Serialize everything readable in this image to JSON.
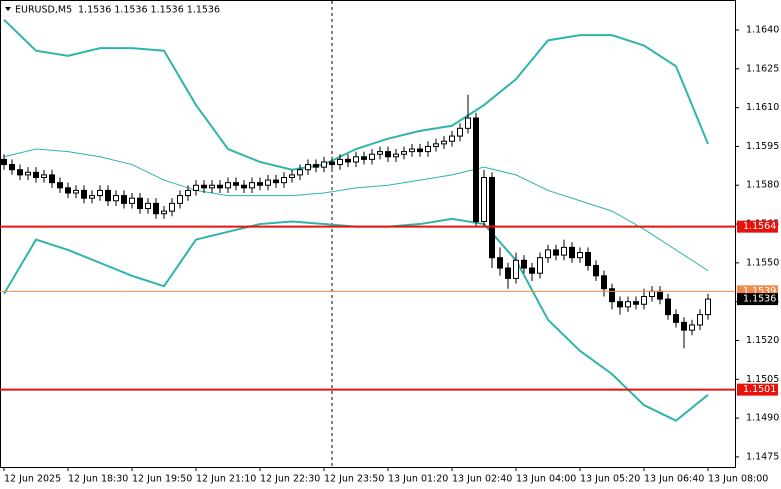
{
  "chart_data": {
    "type": "candlestick",
    "title": "EURUSD,M5",
    "subtitle": "1.1536 1.1536 1.1536 1.1536",
    "ylim": [
      1.14711,
      1.16516
    ],
    "xlim": [
      -0.5,
      91.375
    ],
    "yticks": [
      1.1475,
      {
        "value": 1.149,
        "label": "1.1490"
      },
      1.1505,
      {
        "value": 1.152,
        "label": "1.1520"
      },
      1.1535,
      {
        "value": 1.155,
        "label": "1.1550"
      },
      1.1565,
      {
        "value": 1.158,
        "label": "1.1580"
      },
      1.1595,
      {
        "value": 1.161,
        "label": "1.1610"
      },
      1.1625,
      {
        "value": 1.164,
        "label": "1.1640"
      }
    ],
    "xticks": [
      {
        "value": 0,
        "label": "12 Jun 2025"
      },
      {
        "value": 8,
        "label": "12 Jun 18:30"
      },
      {
        "value": 16,
        "label": "12 Jun 19:50"
      },
      {
        "value": 24,
        "label": "12 Jun 21:10"
      },
      {
        "value": 32,
        "label": "12 Jun 22:30"
      },
      {
        "value": 40,
        "label": "12 Jun 23:50"
      },
      {
        "value": 48,
        "label": "13 Jun 01:20"
      },
      {
        "value": 56,
        "label": "13 Jun 02:40"
      },
      {
        "value": 64,
        "label": "13 Jun 04:00"
      },
      {
        "value": 72,
        "label": "13 Jun 05:20"
      },
      {
        "value": 80,
        "label": "13 Jun 06:40"
      },
      {
        "value": 88,
        "label": "13 Jun 08:00"
      }
    ],
    "open": [
      1.159,
      1.1588,
      1.1586,
      1.1584,
      1.1585,
      1.1583,
      1.1584,
      1.1581,
      1.1579,
      1.1577,
      1.1578,
      1.1575,
      1.1576,
      1.1578,
      1.1574,
      1.1576,
      1.1573,
      1.1575,
      1.1571,
      1.1573,
      1.1569,
      1.157,
      1.1573,
      1.1576,
      1.1578,
      1.158,
      1.1579,
      1.158,
      1.1579,
      1.1581,
      1.158,
      1.1579,
      1.1581,
      1.158,
      1.1582,
      1.1581,
      1.1583,
      1.1584,
      1.1586,
      1.1588,
      1.1587,
      1.1589,
      1.1588,
      1.159,
      1.1589,
      1.1591,
      1.159,
      1.1592,
      1.1593,
      1.1591,
      1.1592,
      1.1593,
      1.1594,
      1.1593,
      1.1595,
      1.1596,
      1.1597,
      1.1599,
      1.1602,
      1.1606,
      1.1566,
      1.1583,
      1.1552,
      1.1548,
      1.1544,
      1.1551,
      1.1548,
      1.1546,
      1.1552,
      1.1555,
      1.1553,
      1.1556,
      1.1552,
      1.1554,
      1.1549,
      1.1545,
      1.154,
      1.1535,
      1.1533,
      1.1535,
      1.1534,
      1.1537,
      1.1539,
      1.1536,
      1.153,
      1.1527,
      1.1524,
      1.1526,
      1.153
    ],
    "high": [
      1.1592,
      1.159,
      1.1588,
      1.1587,
      1.1587,
      1.1586,
      1.1586,
      1.1583,
      1.1581,
      1.158,
      1.158,
      1.1578,
      1.158,
      1.158,
      1.1578,
      1.1578,
      1.1577,
      1.1577,
      1.1575,
      1.1575,
      1.1572,
      1.1575,
      1.1578,
      1.158,
      1.1582,
      1.1582,
      1.1582,
      1.1582,
      1.1583,
      1.1583,
      1.1582,
      1.1583,
      1.1583,
      1.1584,
      1.1584,
      1.1585,
      1.1586,
      1.1588,
      1.159,
      1.159,
      1.1591,
      1.1591,
      1.1592,
      1.1592,
      1.1593,
      1.1593,
      1.1594,
      1.1595,
      1.1595,
      1.1594,
      1.1595,
      1.1596,
      1.1596,
      1.1597,
      1.1598,
      1.1599,
      1.1601,
      1.1604,
      1.1615,
      1.1608,
      1.1586,
      1.1585,
      1.1556,
      1.155,
      1.1554,
      1.1553,
      1.155,
      1.1554,
      1.1557,
      1.1557,
      1.1559,
      1.1558,
      1.1556,
      1.1556,
      1.1551,
      1.1547,
      1.1542,
      1.1537,
      1.1537,
      1.1537,
      1.154,
      1.1541,
      1.1541,
      1.1538,
      1.1532,
      1.1529,
      1.1528,
      1.1532,
      1.1538
    ],
    "low": [
      1.1586,
      1.1584,
      1.1582,
      1.1582,
      1.1581,
      1.1581,
      1.1579,
      1.1577,
      1.1575,
      1.1575,
      1.1573,
      1.1573,
      1.1574,
      1.1572,
      1.1572,
      1.1571,
      1.1571,
      1.1569,
      1.1569,
      1.1567,
      1.1567,
      1.1568,
      1.1571,
      1.1574,
      1.1576,
      1.1577,
      1.1577,
      1.1577,
      1.1577,
      1.1578,
      1.1577,
      1.1577,
      1.1578,
      1.1578,
      1.1579,
      1.1579,
      1.1581,
      1.1582,
      1.1584,
      1.1585,
      1.1585,
      1.1586,
      1.1586,
      1.1587,
      1.1587,
      1.1588,
      1.1588,
      1.159,
      1.1589,
      1.1589,
      1.159,
      1.1591,
      1.1591,
      1.1591,
      1.1593,
      1.1594,
      1.1595,
      1.1597,
      1.16,
      1.1564,
      1.1564,
      1.1548,
      1.1545,
      1.154,
      1.1542,
      1.1546,
      1.1543,
      1.1544,
      1.155,
      1.1551,
      1.1551,
      1.155,
      1.155,
      1.1547,
      1.1543,
      1.1537,
      1.1532,
      1.153,
      1.1531,
      1.1532,
      1.1532,
      1.1535,
      1.1534,
      1.1528,
      1.1525,
      1.1517,
      1.1522,
      1.1524,
      1.1528
    ],
    "close": [
      1.1588,
      1.1586,
      1.1584,
      1.1585,
      1.1583,
      1.1584,
      1.1581,
      1.1579,
      1.1577,
      1.1578,
      1.1575,
      1.1576,
      1.1578,
      1.1574,
      1.1576,
      1.1573,
      1.1575,
      1.1571,
      1.1573,
      1.1569,
      1.157,
      1.1573,
      1.1576,
      1.1578,
      1.158,
      1.1579,
      1.158,
      1.1579,
      1.1581,
      1.158,
      1.1579,
      1.1581,
      1.158,
      1.1582,
      1.1581,
      1.1583,
      1.1584,
      1.1586,
      1.1588,
      1.1587,
      1.1589,
      1.1588,
      1.159,
      1.1589,
      1.1591,
      1.159,
      1.1592,
      1.1593,
      1.1591,
      1.1592,
      1.1593,
      1.1594,
      1.1593,
      1.1595,
      1.1596,
      1.1597,
      1.1599,
      1.1602,
      1.1606,
      1.1566,
      1.1583,
      1.1552,
      1.1548,
      1.1544,
      1.1551,
      1.1548,
      1.1546,
      1.1552,
      1.1555,
      1.1553,
      1.1556,
      1.1552,
      1.1554,
      1.1549,
      1.1545,
      1.154,
      1.1535,
      1.1533,
      1.1535,
      1.1534,
      1.1537,
      1.1539,
      1.1536,
      1.153,
      1.1527,
      1.1524,
      1.1526,
      1.153,
      1.1536
    ],
    "bands": {
      "x": [
        0,
        4,
        8,
        12,
        16,
        20,
        24,
        28,
        32,
        36,
        40,
        44,
        48,
        52,
        56,
        60,
        64,
        68,
        72,
        76,
        80,
        84,
        88
      ],
      "series": [
        {
          "color": "#2fb4ab",
          "values": [
            1.1644,
            1.1632,
            1.163,
            1.1633,
            1.1633,
            1.1632,
            1.1611,
            1.1594,
            1.1589,
            1.1586,
            1.1588,
            1.1594,
            1.1598,
            1.1601,
            1.1603,
            1.1611,
            1.1621,
            1.1636,
            1.1638,
            1.1638,
            1.1634,
            1.1626,
            1.1596
          ]
        },
        {
          "color": "#2fb4ab",
          "values": [
            1.1591,
            1.1594,
            1.1593,
            1.1591,
            1.1588,
            1.1582,
            1.1578,
            1.1576,
            1.1576,
            1.1576,
            1.1577,
            1.1579,
            1.158,
            1.1582,
            1.1584,
            1.1587,
            1.1584,
            1.1578,
            1.1574,
            1.157,
            1.1563,
            1.1555,
            1.1547
          ]
        },
        {
          "color": "#2fb4ab",
          "values": [
            1.1538,
            1.1559,
            1.1555,
            1.155,
            1.1545,
            1.1541,
            1.1559,
            1.1562,
            1.1565,
            1.1566,
            1.1565,
            1.1564,
            1.1564,
            1.1565,
            1.1567,
            1.1565,
            1.1551,
            1.1528,
            1.1516,
            1.1507,
            1.1495,
            1.1489,
            1.1499
          ]
        }
      ]
    },
    "levels": [
      {
        "value": 1.1564,
        "color": "#e8120c"
      },
      {
        "value": 1.1501,
        "color": "#e8120c"
      },
      {
        "value": 1.1539,
        "color": "#f08a4b"
      }
    ],
    "last_price": 1.1536
  }
}
